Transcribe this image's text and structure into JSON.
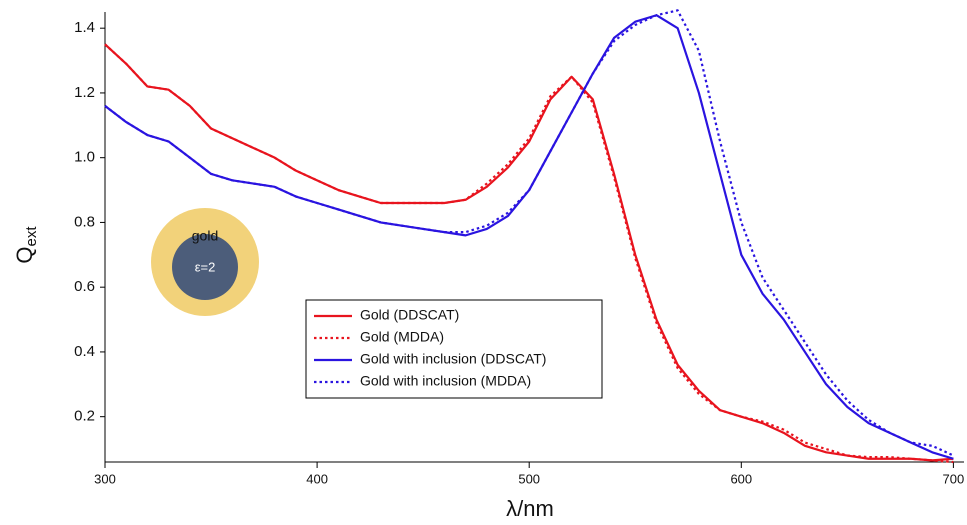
{
  "chart_data": {
    "type": "line",
    "x_label": "λ/nm",
    "y_label": "Q",
    "y_label_sub": "ext",
    "annotations": [
      "gold",
      "ε=2"
    ],
    "x": [
      300,
      310,
      320,
      330,
      340,
      350,
      360,
      370,
      380,
      390,
      400,
      410,
      420,
      430,
      440,
      450,
      460,
      470,
      480,
      490,
      500,
      510,
      520,
      530,
      540,
      550,
      560,
      570,
      580,
      590,
      600,
      610,
      620,
      630,
      640,
      650,
      660,
      670,
      680,
      690,
      700
    ],
    "series": [
      {
        "name": "Gold (DDSCAT)",
        "color": "#e8141e",
        "dash": "solid",
        "values": [
          1.35,
          1.29,
          1.22,
          1.21,
          1.16,
          1.09,
          1.06,
          1.03,
          1.0,
          0.96,
          0.93,
          0.9,
          0.88,
          0.86,
          0.86,
          0.86,
          0.86,
          0.87,
          0.91,
          0.97,
          1.05,
          1.18,
          1.25,
          1.18,
          0.95,
          0.7,
          0.5,
          0.36,
          0.28,
          0.22,
          0.2,
          0.18,
          0.15,
          0.11,
          0.09,
          0.08,
          0.07,
          0.07,
          0.07,
          0.065,
          0.07
        ]
      },
      {
        "name": "Gold (MDDA)",
        "color": "#e8141e",
        "dash": "dotted",
        "values": [
          1.35,
          1.29,
          1.22,
          1.21,
          1.16,
          1.09,
          1.06,
          1.03,
          1.0,
          0.96,
          0.93,
          0.9,
          0.88,
          0.86,
          0.86,
          0.86,
          0.86,
          0.87,
          0.92,
          0.98,
          1.06,
          1.19,
          1.25,
          1.17,
          0.94,
          0.69,
          0.49,
          0.35,
          0.27,
          0.22,
          0.2,
          0.185,
          0.16,
          0.12,
          0.1,
          0.08,
          0.075,
          0.075,
          0.07,
          0.065,
          0.06
        ]
      },
      {
        "name": "Gold with inclusion (DDSCAT)",
        "color": "#2a14e0",
        "dash": "solid",
        "values": [
          1.16,
          1.11,
          1.07,
          1.05,
          1.0,
          0.95,
          0.93,
          0.92,
          0.91,
          0.88,
          0.86,
          0.84,
          0.82,
          0.8,
          0.79,
          0.78,
          0.77,
          0.76,
          0.78,
          0.82,
          0.9,
          1.02,
          1.14,
          1.26,
          1.37,
          1.42,
          1.44,
          1.4,
          1.2,
          0.95,
          0.7,
          0.58,
          0.5,
          0.4,
          0.3,
          0.23,
          0.18,
          0.15,
          0.12,
          0.09,
          0.07
        ]
      },
      {
        "name": "Gold with inclusion (MDDA)",
        "color": "#2a14e0",
        "dash": "dotted",
        "values": [
          1.16,
          1.11,
          1.07,
          1.05,
          1.0,
          0.95,
          0.93,
          0.92,
          0.91,
          0.88,
          0.86,
          0.84,
          0.82,
          0.8,
          0.79,
          0.78,
          0.77,
          0.77,
          0.79,
          0.83,
          0.9,
          1.02,
          1.14,
          1.26,
          1.36,
          1.41,
          1.44,
          1.455,
          1.33,
          1.05,
          0.8,
          0.63,
          0.53,
          0.43,
          0.33,
          0.25,
          0.19,
          0.15,
          0.12,
          0.11,
          0.08
        ]
      }
    ],
    "xlim": [
      300,
      705
    ],
    "ylim": [
      0.06,
      1.45
    ],
    "xticks": [
      300,
      400,
      500,
      600,
      700
    ],
    "yticks": [
      0.2,
      0.4,
      0.6,
      0.8,
      {
        "value": 1,
        "label": "1.0"
      },
      1.2,
      1.4
    ],
    "grid": false,
    "legend_position": "center"
  }
}
